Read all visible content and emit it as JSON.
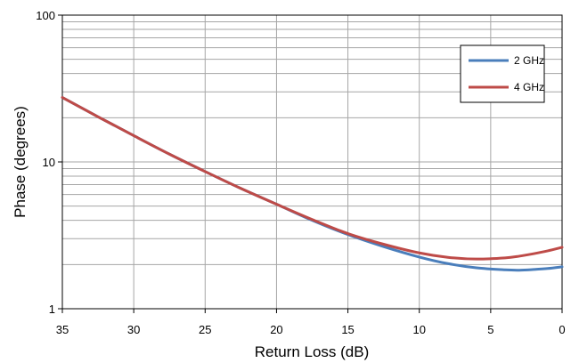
{
  "chart_data": {
    "type": "line",
    "title": "",
    "xlabel": "Return Loss (dB)",
    "ylabel": "Phase (degrees)",
    "x_reversed": true,
    "xlim": [
      35,
      0
    ],
    "ylim": [
      1,
      100
    ],
    "yscale": "log",
    "grid": true,
    "legend_position": "top-right",
    "x_ticks": [
      "35",
      "30",
      "25",
      "20",
      "15",
      "10",
      "5",
      "0"
    ],
    "y_ticks": [
      "1",
      "10",
      "100"
    ],
    "series": [
      {
        "name": "2 GHz",
        "color": "#4a7ebb",
        "x": [
          35,
          32.5,
          30,
          27.5,
          25,
          22.5,
          20,
          17.5,
          15,
          12.5,
          10,
          8,
          6,
          4,
          3,
          2,
          1,
          0
        ],
        "y": [
          27.5,
          20.3,
          15.1,
          11.3,
          8.6,
          6.6,
          5.15,
          4.0,
          3.2,
          2.65,
          2.25,
          2.03,
          1.9,
          1.84,
          1.83,
          1.85,
          1.88,
          1.93
        ]
      },
      {
        "name": "4 GHz",
        "color": "#be4b48",
        "x": [
          35,
          32.5,
          30,
          27.5,
          25,
          22.5,
          20,
          17.5,
          15,
          12.5,
          10,
          8,
          6,
          4,
          3,
          2,
          1,
          0
        ],
        "y": [
          27.5,
          20.3,
          15.1,
          11.3,
          8.6,
          6.6,
          5.15,
          4.05,
          3.25,
          2.75,
          2.4,
          2.24,
          2.18,
          2.22,
          2.28,
          2.37,
          2.48,
          2.62
        ]
      }
    ]
  }
}
